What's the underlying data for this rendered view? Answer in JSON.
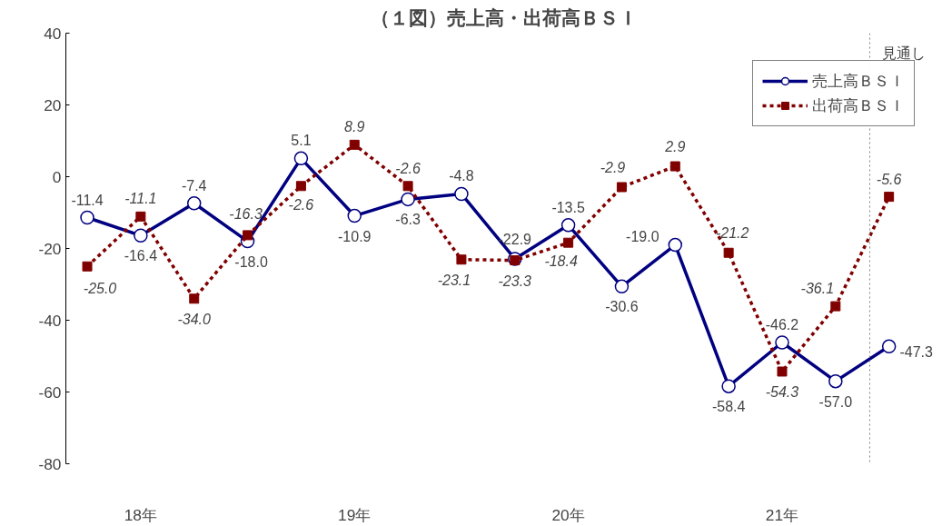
{
  "chart_data": {
    "type": "line",
    "title": "（１図）売上高・出荷高ＢＳＩ",
    "categories": [
      null,
      "18年",
      null,
      null,
      null,
      "19年",
      null,
      null,
      null,
      "20年",
      null,
      null,
      null,
      "21年",
      null,
      null
    ],
    "ylim": [
      -80,
      40
    ],
    "yticks": [
      -80,
      -60,
      -40,
      -20,
      0,
      20,
      40
    ],
    "series": [
      {
        "name": "売上高ＢＳＩ",
        "color": "#000080",
        "marker": "circle",
        "line_style": "solid",
        "values": [
          -11.4,
          -16.4,
          -7.4,
          -18.0,
          5.1,
          -10.9,
          -6.3,
          -4.8,
          -22.9,
          -13.5,
          -30.6,
          -19.0,
          -58.4,
          -46.2,
          -57.0,
          -47.3
        ],
        "value_labels": [
          "-11.4",
          "-16.4",
          "-7.4",
          "-18.0",
          "5.1",
          "-10.9",
          "-6.3",
          "-4.8",
          "-22.9",
          "-13.5",
          "-30.6",
          "-19.0",
          "-58.4",
          "-46.2",
          "-57.0",
          "-47.3"
        ]
      },
      {
        "name": "出荷高ＢＳＩ",
        "color": "#800000",
        "marker": "square",
        "line_style": "dashed",
        "values": [
          -25.0,
          -11.1,
          -34.0,
          -16.3,
          -2.6,
          8.9,
          -2.6,
          -23.1,
          -23.3,
          -18.4,
          -2.9,
          2.9,
          -21.2,
          -54.3,
          -36.1,
          -5.6
        ],
        "value_labels": [
          "-25.0",
          "-11.1",
          "-34.0",
          "-16.3",
          "-2.6",
          "8.9",
          "-2.6",
          "-23.1",
          "-23.3",
          "-18.4",
          "-2.9",
          "2.9",
          "-21.2",
          "-54.3",
          "-36.1",
          "-5.6"
        ]
      }
    ],
    "annotations": [
      "見通し"
    ],
    "grid": false,
    "legend": "top right"
  }
}
